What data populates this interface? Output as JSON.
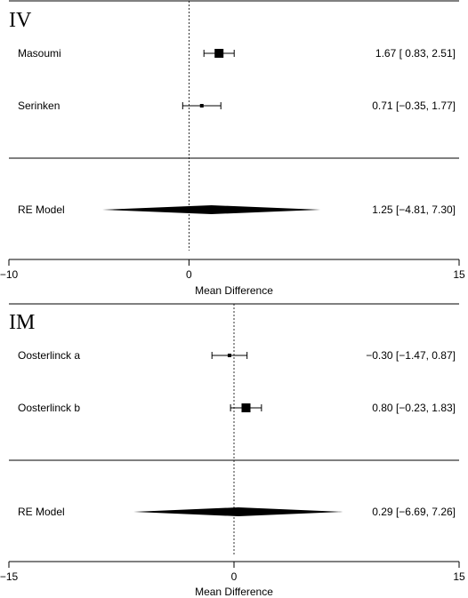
{
  "chart_data": [
    {
      "type": "forest",
      "panel_label": "IV",
      "xlabel": "Mean Difference",
      "xlim": [
        -10,
        15
      ],
      "ticks": [
        -10,
        0,
        15
      ],
      "tick_labels": [
        "−10",
        "0",
        "15"
      ],
      "reference_line": 0,
      "studies": [
        {
          "name": "Masoumi",
          "estimate": 1.67,
          "lower": 0.83,
          "upper": 2.51,
          "ci_text": "1.67 [ 0.83, 2.51]",
          "weight_box": "large"
        },
        {
          "name": "Serinken",
          "estimate": 0.71,
          "lower": -0.35,
          "upper": 1.77,
          "ci_text": "0.71 [−0.35, 1.77]",
          "weight_box": "small"
        }
      ],
      "summary": {
        "name": "RE Model",
        "estimate": 1.25,
        "lower": -4.81,
        "upper": 7.3,
        "ci_text": "1.25 [−4.81, 7.30]"
      }
    },
    {
      "type": "forest",
      "panel_label": "IM",
      "xlabel": "Mean Difference",
      "xlim": [
        -15,
        15
      ],
      "ticks": [
        -15,
        0,
        15
      ],
      "tick_labels": [
        "−15",
        "0",
        "15"
      ],
      "reference_line": 0,
      "studies": [
        {
          "name": "Oosterlinck a",
          "estimate": -0.3,
          "lower": -1.47,
          "upper": 0.87,
          "ci_text": "−0.30 [−1.47, 0.87]",
          "weight_box": "small"
        },
        {
          "name": "Oosterlinck b",
          "estimate": 0.8,
          "lower": -0.23,
          "upper": 1.83,
          "ci_text": "0.80 [−0.23, 1.83]",
          "weight_box": "large"
        }
      ],
      "summary": {
        "name": "RE Model",
        "estimate": 0.29,
        "lower": -6.69,
        "upper": 7.26,
        "ci_text": "0.29 [−6.69, 7.26]"
      }
    }
  ]
}
